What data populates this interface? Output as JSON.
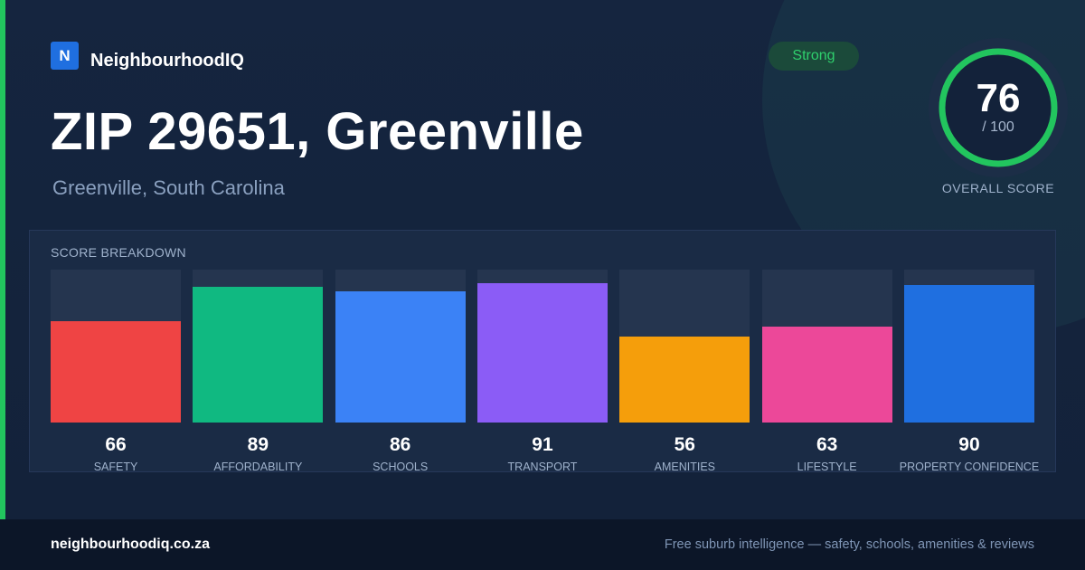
{
  "brand": {
    "logo_letter": "N",
    "name": "NeighbourhoodIQ"
  },
  "header": {
    "title": "ZIP 29651, Greenville",
    "subtitle": "Greenville, South Carolina",
    "badge": "Strong"
  },
  "overall": {
    "score": "76",
    "max": "/ 100",
    "label": "OVERALL SCORE",
    "fraction": 0.76,
    "color": "#22c55e"
  },
  "panel_title": "SCORE BREAKDOWN",
  "chart_data": {
    "type": "bar",
    "title": "SCORE BREAKDOWN",
    "categories": [
      "SAFETY",
      "AFFORDABILITY",
      "SCHOOLS",
      "TRANSPORT",
      "AMENITIES",
      "LIFESTYLE",
      "PROPERTY CONFIDENCE"
    ],
    "values": [
      66,
      89,
      86,
      91,
      56,
      63,
      90
    ],
    "colors": [
      "#ef4444",
      "#10b981",
      "#3b82f6",
      "#8b5cf6",
      "#f59e0b",
      "#ec4899",
      "#1f6fe0"
    ],
    "ylim": [
      0,
      100
    ],
    "grid": false,
    "legend": "none"
  },
  "footer": {
    "url": "neighbourhoodiq.co.za",
    "tagline": "Free suburb intelligence — safety, schools, amenities & reviews"
  }
}
